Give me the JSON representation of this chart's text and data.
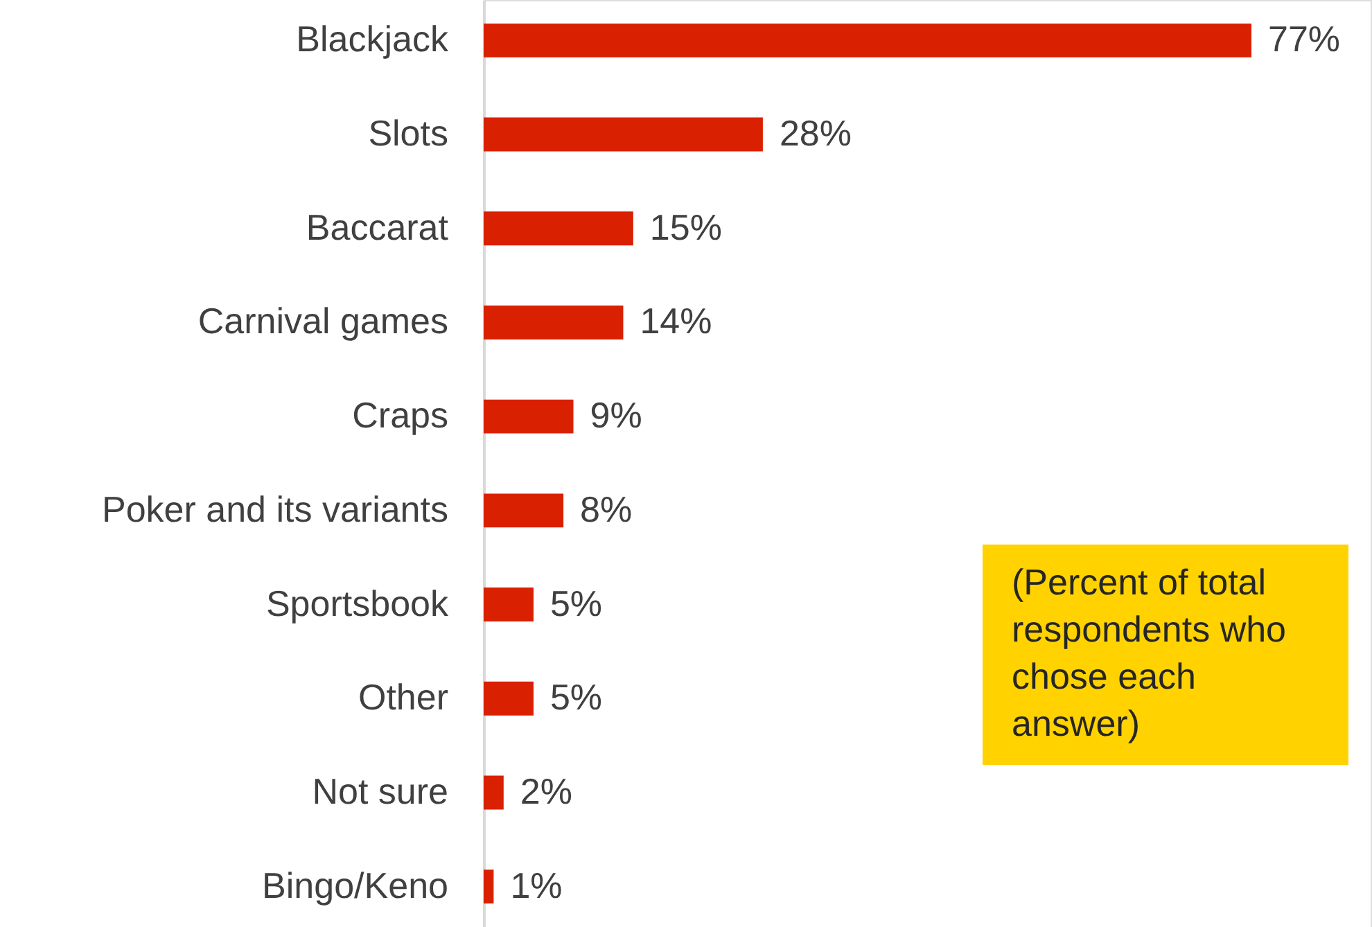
{
  "chart_data": {
    "type": "bar",
    "orientation": "horizontal",
    "categories": [
      "Blackjack",
      "Slots",
      "Baccarat",
      "Carnival games",
      "Craps",
      "Poker and its variants",
      "Sportsbook",
      "Other",
      "Not sure",
      "Bingo/Keno"
    ],
    "values": [
      77,
      28,
      15,
      14,
      9,
      8,
      5,
      5,
      2,
      1
    ],
    "value_labels": [
      "77%",
      "28%",
      "15%",
      "14%",
      "9%",
      "8%",
      "5%",
      "5%",
      "2%",
      "1%"
    ],
    "color": "#d92000",
    "grid": false,
    "tick_labels": "y",
    "annotations": [
      "(Percent of total respondents who chose each answer)"
    ]
  }
}
